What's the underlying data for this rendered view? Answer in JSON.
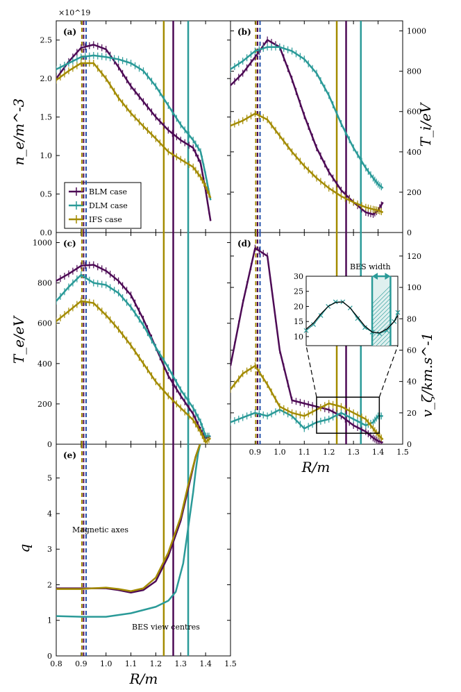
{
  "colors": {
    "BLM": "#4d0a55",
    "DLM": "#2a9a98",
    "IFS": "#a38b00",
    "axis_blue": "#1f4fa8",
    "frame": "#000000"
  },
  "labels": {
    "xlabel": "R/m",
    "ylabel_a": "n_e/m^-3",
    "ylabel_b": "T_i/eV",
    "ylabel_c": "T_e/eV",
    "ylabel_d": "v_ζ/km.s^-1",
    "ylabel_e": "q",
    "scale_a": "×10^19",
    "magnetic_axes": "Magnetic axes",
    "bes_view_centres": "BES view centres",
    "bes_width": "BES width"
  },
  "chart_data": [
    {
      "id": "a",
      "panel_label": "(a)",
      "type": "line",
      "title": "",
      "xlabel": "",
      "ylabel": "n_e/m^-3 (×10^19)",
      "xlim": [
        0.8,
        1.5
      ],
      "ylim": [
        0.0,
        2.75
      ],
      "yticks": [
        0.0,
        0.5,
        1.0,
        1.5,
        2.0,
        2.5
      ],
      "ytick_labels": [
        "0.0",
        "0.5",
        "1.0",
        "1.5",
        "2.0",
        "2.5"
      ],
      "legend": {
        "location": "center-left",
        "entries": [
          "BLM case",
          "DLM case",
          "IFS case"
        ]
      },
      "series": [
        {
          "name": "BLM case",
          "x": [
            0.8,
            0.85,
            0.9,
            0.95,
            1.0,
            1.05,
            1.1,
            1.15,
            1.2,
            1.25,
            1.3,
            1.35,
            1.38,
            1.4,
            1.42
          ],
          "values": [
            2.0,
            2.22,
            2.4,
            2.44,
            2.38,
            2.15,
            1.9,
            1.7,
            1.5,
            1.33,
            1.2,
            1.1,
            0.9,
            0.55,
            0.15
          ]
        },
        {
          "name": "DLM case",
          "x": [
            0.8,
            0.85,
            0.9,
            0.95,
            1.0,
            1.05,
            1.1,
            1.15,
            1.2,
            1.25,
            1.3,
            1.35,
            1.38,
            1.4,
            1.42
          ],
          "values": [
            2.12,
            2.2,
            2.28,
            2.3,
            2.28,
            2.25,
            2.2,
            2.1,
            1.9,
            1.65,
            1.4,
            1.2,
            1.05,
            0.75,
            0.42
          ]
        },
        {
          "name": "IFS case",
          "x": [
            0.8,
            0.85,
            0.9,
            0.95,
            1.0,
            1.05,
            1.1,
            1.15,
            1.2,
            1.25,
            1.3,
            1.35,
            1.38,
            1.4,
            1.42
          ],
          "values": [
            1.98,
            2.1,
            2.2,
            2.2,
            2.0,
            1.75,
            1.55,
            1.38,
            1.22,
            1.05,
            0.95,
            0.85,
            0.72,
            0.6,
            0.45
          ]
        }
      ]
    },
    {
      "id": "b",
      "panel_label": "(b)",
      "type": "line",
      "xlabel": "",
      "ylabel": "T_i/eV",
      "xlim": [
        0.8,
        1.5
      ],
      "ylim": [
        0,
        1050
      ],
      "yticks": [
        0,
        200,
        400,
        600,
        800,
        1000
      ],
      "ytick_labels": [
        "0",
        "200",
        "400",
        "600",
        "800",
        "1000"
      ],
      "series": [
        {
          "name": "BLM case",
          "x": [
            0.8,
            0.85,
            0.9,
            0.95,
            1.0,
            1.05,
            1.1,
            1.15,
            1.2,
            1.25,
            1.3,
            1.35,
            1.38,
            1.4,
            1.42
          ],
          "values": [
            730,
            790,
            870,
            955,
            920,
            760,
            580,
            420,
            300,
            210,
            150,
            100,
            90,
            110,
            150
          ]
        },
        {
          "name": "DLM case",
          "x": [
            0.8,
            0.85,
            0.9,
            0.95,
            1.0,
            1.05,
            1.1,
            1.15,
            1.2,
            1.25,
            1.3,
            1.35,
            1.38,
            1.4,
            1.42
          ],
          "values": [
            810,
            850,
            900,
            920,
            920,
            900,
            860,
            790,
            680,
            540,
            420,
            320,
            270,
            240,
            220
          ]
        },
        {
          "name": "IFS case",
          "x": [
            0.8,
            0.85,
            0.9,
            0.95,
            1.0,
            1.05,
            1.1,
            1.15,
            1.2,
            1.25,
            1.3,
            1.35,
            1.38,
            1.4,
            1.42
          ],
          "values": [
            530,
            555,
            590,
            560,
            480,
            400,
            330,
            270,
            220,
            180,
            150,
            125,
            115,
            110,
            100
          ]
        }
      ]
    },
    {
      "id": "c",
      "panel_label": "(c)",
      "type": "line",
      "xlabel": "",
      "ylabel": "T_e/eV",
      "xlim": [
        0.8,
        1.5
      ],
      "ylim": [
        0,
        1050
      ],
      "yticks": [
        0,
        200,
        400,
        600,
        800,
        1000
      ],
      "ytick_labels": [
        "0",
        "200",
        "400",
        "600",
        "800",
        "1000"
      ],
      "series": [
        {
          "name": "BLM case",
          "x": [
            0.8,
            0.85,
            0.9,
            0.95,
            1.0,
            1.05,
            1.1,
            1.15,
            1.2,
            1.25,
            1.3,
            1.35,
            1.38,
            1.4,
            1.42
          ],
          "values": [
            810,
            845,
            885,
            890,
            860,
            810,
            740,
            620,
            480,
            340,
            240,
            150,
            70,
            30,
            40
          ]
        },
        {
          "name": "DLM case",
          "x": [
            0.8,
            0.85,
            0.9,
            0.95,
            1.0,
            1.05,
            1.1,
            1.15,
            1.2,
            1.25,
            1.3,
            1.35,
            1.38,
            1.4,
            1.42
          ],
          "values": [
            710,
            780,
            840,
            800,
            790,
            750,
            680,
            590,
            480,
            380,
            270,
            180,
            110,
            40,
            40
          ]
        },
        {
          "name": "IFS case",
          "x": [
            0.8,
            0.85,
            0.9,
            0.95,
            1.0,
            1.05,
            1.1,
            1.15,
            1.2,
            1.25,
            1.3,
            1.35,
            1.38,
            1.4,
            1.42
          ],
          "values": [
            610,
            660,
            710,
            700,
            640,
            570,
            490,
            400,
            310,
            240,
            180,
            120,
            60,
            10,
            30
          ]
        }
      ]
    },
    {
      "id": "d",
      "panel_label": "(d)",
      "type": "line",
      "xlabel": "R/m",
      "ylabel": "v_ζ/km.s^-1",
      "xlim": [
        0.8,
        1.5
      ],
      "ylim": [
        0,
        135
      ],
      "xticks": [
        0.9,
        1.0,
        1.1,
        1.2,
        1.3,
        1.4,
        1.5
      ],
      "xtick_labels": [
        "0.9",
        "1.0",
        "1.1",
        "1.2",
        "1.3",
        "1.4",
        "1.5"
      ],
      "yticks": [
        0,
        20,
        40,
        60,
        80,
        100,
        120
      ],
      "ytick_labels": [
        "0",
        "20",
        "40",
        "60",
        "80",
        "100",
        "120"
      ],
      "series": [
        {
          "name": "BLM case",
          "x": [
            0.8,
            0.85,
            0.9,
            0.95,
            1.0,
            1.05,
            1.1,
            1.15,
            1.2,
            1.25,
            1.3,
            1.35,
            1.38,
            1.4,
            1.42
          ],
          "values": [
            50,
            90,
            125,
            120,
            60,
            28,
            26,
            24,
            22,
            18,
            12,
            8,
            4,
            2,
            1
          ]
        },
        {
          "name": "DLM case",
          "x": [
            0.8,
            0.85,
            0.9,
            0.95,
            1.0,
            1.05,
            1.1,
            1.15,
            1.2,
            1.25,
            1.3,
            1.35,
            1.38,
            1.4,
            1.42
          ],
          "values": [
            14,
            17,
            20,
            18,
            22,
            18,
            10,
            14,
            16,
            20,
            16,
            12,
            14,
            18,
            18
          ]
        },
        {
          "name": "IFS case",
          "x": [
            0.8,
            0.85,
            0.9,
            0.95,
            1.0,
            1.05,
            1.1,
            1.15,
            1.2,
            1.25,
            1.3,
            1.35,
            1.38,
            1.4,
            1.42
          ],
          "values": [
            35,
            45,
            50,
            38,
            24,
            20,
            18,
            22,
            26,
            24,
            20,
            16,
            10,
            6,
            3
          ]
        }
      ],
      "inset": {
        "xlim": [
          1.15,
          1.4
        ],
        "ylim": [
          7,
          30
        ],
        "yticks": [
          10,
          15,
          20,
          25,
          30
        ],
        "ytick_labels": [
          "10",
          "15",
          "20",
          "25",
          "30"
        ],
        "series": [
          {
            "name": "DLM data",
            "x": [
              1.15,
              1.17,
              1.19,
              1.21,
              1.23,
              1.25,
              1.27,
              1.29,
              1.31,
              1.33,
              1.35,
              1.37,
              1.39,
              1.4
            ],
            "values": [
              12,
              14,
              17,
              20,
              21.5,
              21.5,
              19.5,
              16,
              13,
              11.5,
              11,
              12,
              15,
              18
            ]
          },
          {
            "name": "fit",
            "x": [
              1.15,
              1.17,
              1.19,
              1.21,
              1.23,
              1.25,
              1.27,
              1.29,
              1.31,
              1.33,
              1.35,
              1.37,
              1.39,
              1.4
            ],
            "values": [
              12.5,
              14.5,
              17.5,
              20,
              21.3,
              21.5,
              19.5,
              16.5,
              13.5,
              11.5,
              11.2,
              12.5,
              15,
              17
            ]
          }
        ]
      }
    },
    {
      "id": "e",
      "panel_label": "(e)",
      "type": "line",
      "xlabel": "R/m",
      "ylabel": "q",
      "xlim": [
        0.8,
        1.5
      ],
      "ylim": [
        0,
        5.95
      ],
      "xticks": [
        0.8,
        0.9,
        1.0,
        1.1,
        1.2,
        1.3,
        1.4,
        1.5
      ],
      "xtick_labels": [
        "0.8",
        "0.9",
        "1.0",
        "1.1",
        "1.2",
        "1.3",
        "1.4",
        "1.5"
      ],
      "yticks": [
        0,
        1,
        2,
        3,
        4,
        5
      ],
      "ytick_labels": [
        "0",
        "1",
        "2",
        "3",
        "4",
        "5"
      ],
      "series": [
        {
          "name": "BLM case",
          "x": [
            0.8,
            0.9,
            1.0,
            1.05,
            1.1,
            1.15,
            1.2,
            1.25,
            1.3,
            1.33,
            1.36,
            1.38
          ],
          "values": [
            1.9,
            1.9,
            1.9,
            1.85,
            1.78,
            1.85,
            2.1,
            2.8,
            3.8,
            4.7,
            5.6,
            6.0
          ]
        },
        {
          "name": "DLM case",
          "x": [
            0.8,
            0.9,
            1.0,
            1.1,
            1.2,
            1.25,
            1.28,
            1.31,
            1.33,
            1.35,
            1.36,
            1.37,
            1.38
          ],
          "values": [
            1.12,
            1.1,
            1.1,
            1.2,
            1.38,
            1.55,
            1.8,
            2.6,
            3.6,
            4.6,
            5.2,
            5.7,
            6.0
          ]
        },
        {
          "name": "IFS case",
          "x": [
            0.8,
            0.9,
            1.0,
            1.05,
            1.1,
            1.15,
            1.2,
            1.25,
            1.3,
            1.33,
            1.36,
            1.38
          ],
          "values": [
            1.88,
            1.88,
            1.92,
            1.88,
            1.82,
            1.9,
            2.2,
            2.9,
            3.9,
            4.8,
            5.6,
            6.0
          ]
        }
      ]
    }
  ],
  "vlines": {
    "magnetic_axes": [
      {
        "case": "IFS",
        "R": 0.903
      },
      {
        "case": "BLM",
        "R": 0.91
      },
      {
        "case": "axis_blue",
        "R": 0.92
      }
    ],
    "bes_view_centres": [
      {
        "case": "IFS",
        "R": 1.232
      },
      {
        "case": "BLM",
        "R": 1.27
      },
      {
        "case": "DLM",
        "R": 1.33
      }
    ]
  }
}
